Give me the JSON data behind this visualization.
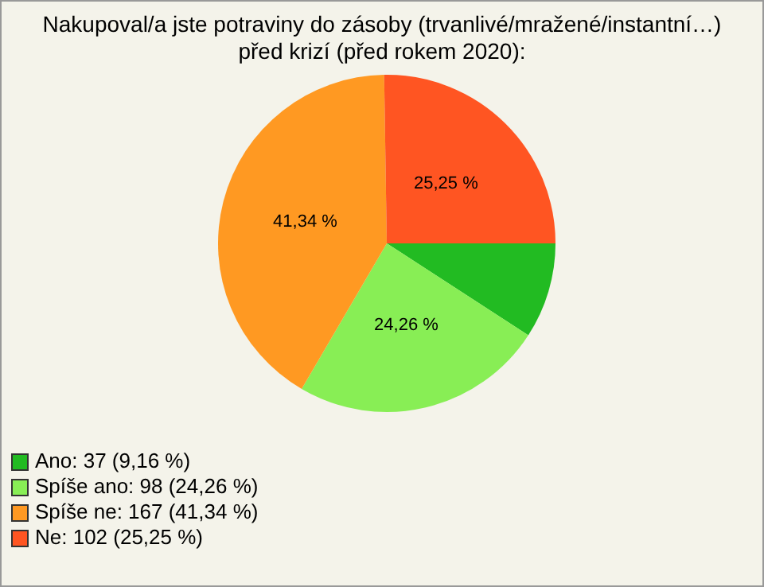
{
  "chart_data": {
    "type": "pie",
    "title": "Nakupoval/a jste potraviny do zásoby (trvanlivé/mražené/instantní…) před krizí (před rokem 2020):",
    "categories": [
      "Ano: 37 (9,16 %)",
      "Spíše ano: 98 (24,26 %)",
      "Spíše ne: 167 (41,34 %)",
      "Ne: 102 (25,25 %)"
    ],
    "values": [
      9.16,
      24.26,
      41.34,
      25.25
    ],
    "colors": [
      "#22bb22",
      "#88ee55",
      "#ff9922",
      "#ff5522"
    ],
    "value_labels": [
      null,
      "24,26 %",
      "41,34 %",
      "25,25 %"
    ],
    "legend": "bottom left"
  }
}
